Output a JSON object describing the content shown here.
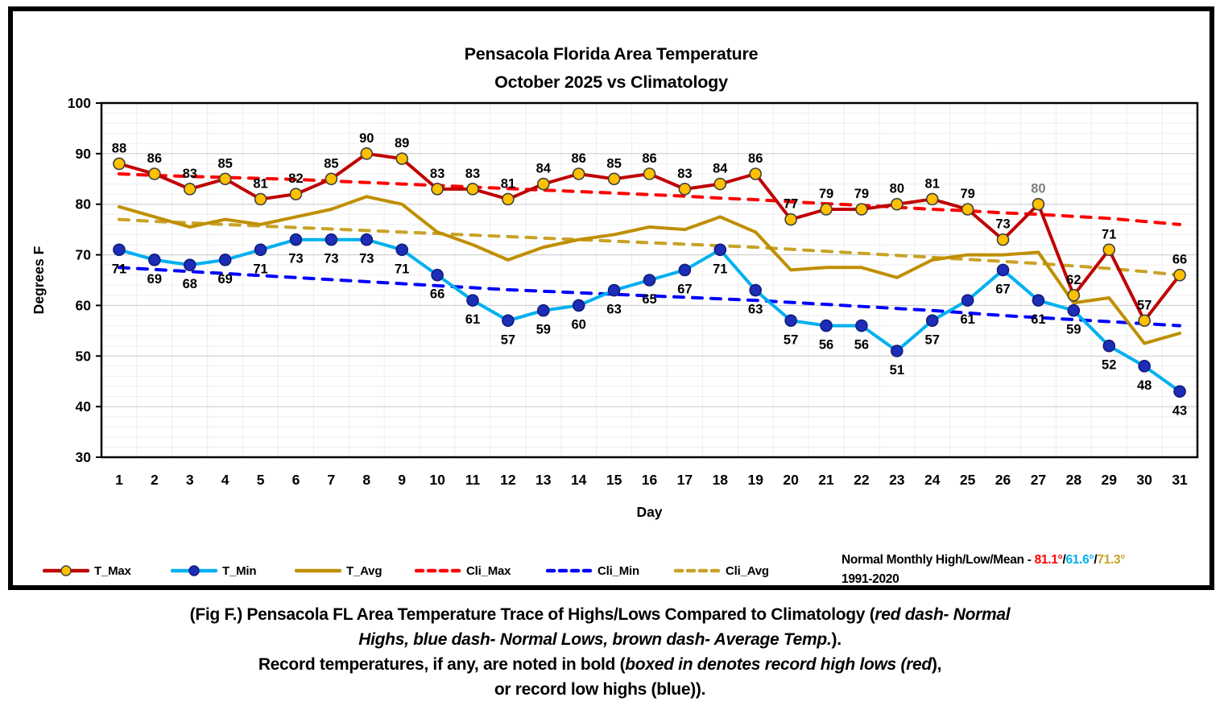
{
  "chart_data": {
    "type": "line",
    "title_line1": "Pensacola Florida Area Temperature",
    "title_line2": "October 2025 vs Climatology",
    "xlabel": "Day",
    "ylabel": "Degrees F",
    "ylim": [
      30,
      100
    ],
    "ytick_step": 10,
    "minor_grid_step": 2,
    "grid": true,
    "legend_position": "bottom",
    "x_days": [
      1,
      2,
      3,
      4,
      5,
      6,
      7,
      8,
      9,
      10,
      11,
      12,
      13,
      14,
      15,
      16,
      17,
      18,
      19,
      20,
      21,
      22,
      23,
      24,
      25,
      26,
      27,
      28,
      29,
      30,
      31
    ],
    "series": [
      {
        "name": "Cli_Max",
        "style": "dashed",
        "color": "#FF0000",
        "values": [
          86,
          85.7,
          85.5,
          85.3,
          85.1,
          84.9,
          84.6,
          84.3,
          84,
          83.7,
          83.4,
          83.1,
          82.8,
          82.5,
          82.2,
          81.9,
          81.6,
          81.2,
          80.9,
          80.5,
          80.1,
          79.8,
          79.4,
          79,
          78.7,
          78.3,
          78,
          77.6,
          77.2,
          76.6,
          76
        ]
      },
      {
        "name": "Cli_Min",
        "style": "dashed",
        "color": "#0000FF",
        "values": [
          67.5,
          67.1,
          66.7,
          66.3,
          65.9,
          65.5,
          65.1,
          64.7,
          64.3,
          63.9,
          63.5,
          63.1,
          62.8,
          62.5,
          62.2,
          61.9,
          61.6,
          61.3,
          61,
          60.6,
          60.2,
          59.8,
          59.4,
          59,
          58.5,
          58,
          57.6,
          57.2,
          56.8,
          56.4,
          56
        ]
      },
      {
        "name": "Cli_Avg",
        "style": "dashed",
        "color": "#C9A227",
        "values": [
          77,
          76.6,
          76.3,
          76,
          75.7,
          75.4,
          75.1,
          74.8,
          74.5,
          74.2,
          73.9,
          73.6,
          73.3,
          73,
          72.7,
          72.4,
          72.1,
          71.8,
          71.5,
          71.1,
          70.7,
          70.3,
          69.9,
          69.5,
          69.1,
          68.7,
          68.3,
          67.8,
          67.3,
          66.7,
          66
        ]
      },
      {
        "name": "T_Avg",
        "style": "solid",
        "color": "#BF8F00",
        "values": [
          79.5,
          77.5,
          75.5,
          77,
          76,
          77.5,
          79,
          81.5,
          80,
          74.5,
          72,
          69,
          71.5,
          73,
          74,
          75.5,
          75,
          77.5,
          74.5,
          67,
          67.5,
          67.5,
          65.5,
          69,
          70,
          70,
          70.5,
          60.5,
          61.5,
          52.5,
          54.5
        ]
      },
      {
        "name": "T_Min",
        "style": "solid",
        "color": "#00B0F0",
        "marker_fill": "#1C2DB8",
        "marker_stroke": "#101C78",
        "labels": true,
        "label_position": "below",
        "values": [
          71,
          69,
          68,
          69,
          71,
          73,
          73,
          73,
          71,
          66,
          61,
          57,
          59,
          60,
          63,
          65,
          67,
          71,
          63,
          57,
          56,
          56,
          51,
          57,
          61,
          67,
          61,
          59,
          52,
          48,
          43
        ]
      },
      {
        "name": "T_Max",
        "style": "solid",
        "color": "#C00000",
        "marker_fill": "#FFC000",
        "marker_stroke": "#3F3F3F",
        "labels": true,
        "label_position": "above",
        "values": [
          88,
          86,
          83,
          85,
          81,
          82,
          85,
          90,
          89,
          83,
          83,
          81,
          84,
          86,
          85,
          86,
          83,
          84,
          86,
          77,
          79,
          79,
          80,
          81,
          79,
          73,
          80,
          62,
          71,
          57,
          66
        ]
      }
    ],
    "special_labels": [
      {
        "series": "T_Max",
        "day": 27,
        "color": "#7F7F7F"
      }
    ]
  },
  "legend": {
    "items": [
      {
        "label": "T_Max",
        "swatch": "line-marker",
        "line_color": "#C00000",
        "marker_fill": "#FFC000",
        "marker_stroke": "#3F3F3F"
      },
      {
        "label": "T_Min",
        "swatch": "line-marker",
        "line_color": "#00B0F0",
        "marker_fill": "#1C2DB8",
        "marker_stroke": "#101C78"
      },
      {
        "label": "T_Avg",
        "swatch": "line",
        "line_color": "#BF8F00"
      },
      {
        "label": "Cli_Max",
        "swatch": "dashed",
        "line_color": "#FF0000"
      },
      {
        "label": "Cli_Min",
        "swatch": "dashed",
        "line_color": "#0000FF"
      },
      {
        "label": "Cli_Avg",
        "swatch": "dashed",
        "line_color": "#C9A227"
      }
    ]
  },
  "note": {
    "prefix": "Normal Monthly High/Low/Mean - ",
    "separator": "/",
    "values": [
      {
        "text": "81.1°",
        "color": "#FF0000"
      },
      {
        "text": "61.6°",
        "color": "#00B0F0"
      },
      {
        "text": "71.3°",
        "color": "#C9A227"
      }
    ],
    "line2": "1991-2020"
  },
  "caption": {
    "lines": [
      [
        {
          "t": "(Fig F.) Pensacola FL Area Temperature Trace of Highs/Lows Compared to Climatology (",
          "i": false
        },
        {
          "t": "red dash- Normal",
          "i": true
        }
      ],
      [
        {
          "t": "Highs, blue dash- Normal Lows, brown dash- Average Temp.",
          "i": true
        },
        {
          "t": ").",
          "i": false
        }
      ],
      [
        {
          "t": "Record temperatures, if any, are noted in bold (",
          "i": false
        },
        {
          "t": "boxed in denotes record high lows (red",
          "i": true
        },
        {
          "t": "),",
          "i": false
        }
      ],
      [
        {
          "t": "or record low highs (blue)).",
          "i": false
        }
      ]
    ]
  },
  "colors": {
    "grid_minor": "#EDEDED",
    "grid_major": "#C8C8C8",
    "plot_border": "#000000",
    "label_text": "#000000"
  }
}
